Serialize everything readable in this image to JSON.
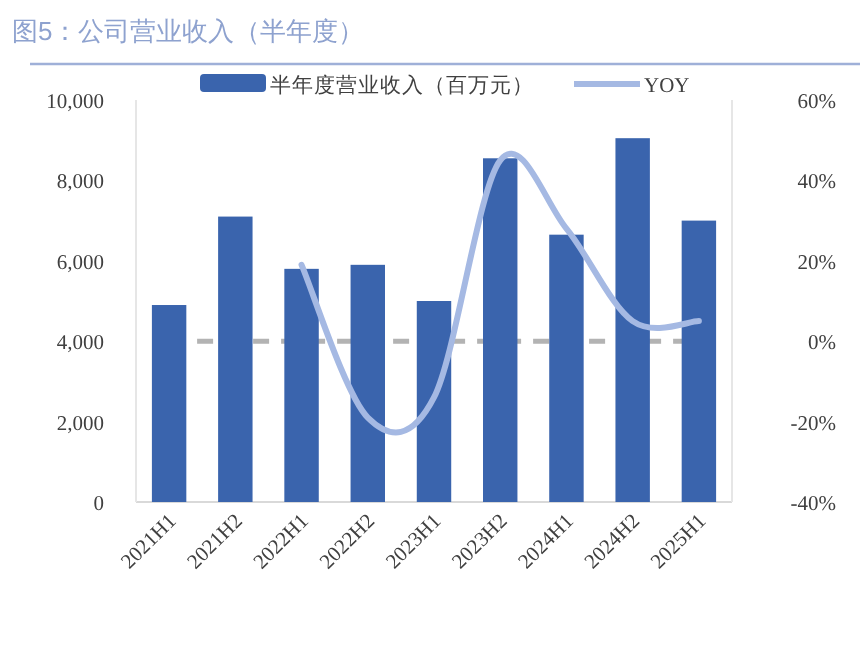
{
  "chart_data": {
    "type": "bar",
    "title": "图5：公司营业收入（半年度）",
    "categories": [
      "2021H1",
      "2021H2",
      "2022H1",
      "2022H2",
      "2023H1",
      "2023H2",
      "2024H1",
      "2024H2",
      "2025H1"
    ],
    "series": [
      {
        "name": "半年度营业收入（百万元）",
        "color": "#3a64ad",
        "values": [
          4900,
          7100,
          5800,
          5900,
          5000,
          8550,
          6650,
          9050,
          7000
        ]
      },
      {
        "name": "YOY",
        "type": "line",
        "axis": "y2",
        "color": "#a5b9e3",
        "values": [
          null,
          null,
          19,
          -19,
          -14,
          45,
          28,
          5,
          5
        ]
      }
    ],
    "ylim": [
      0,
      10000
    ],
    "yticks": [
      {
        "value": 0,
        "label": "0"
      },
      {
        "value": 2000,
        "label": "2,000"
      },
      {
        "value": 4000,
        "label": "4,000"
      },
      {
        "value": 6000,
        "label": "6,000"
      },
      {
        "value": 8000,
        "label": "8,000"
      },
      {
        "value": 10000,
        "label": "10,000"
      }
    ],
    "y2lim": [
      -40,
      60
    ],
    "y2ticks": [
      {
        "value": -40,
        "label": "-40%"
      },
      {
        "value": -20,
        "label": "-20%"
      },
      {
        "value": 0,
        "label": "0%"
      },
      {
        "value": 20,
        "label": "20%"
      },
      {
        "value": 40,
        "label": "40%"
      },
      {
        "value": 60,
        "label": "60%"
      }
    ],
    "ref_lines": [
      {
        "axis": "y2",
        "value": 0,
        "color": "#b3b3b3",
        "line_style": "dashed"
      }
    ],
    "legend": "top"
  }
}
